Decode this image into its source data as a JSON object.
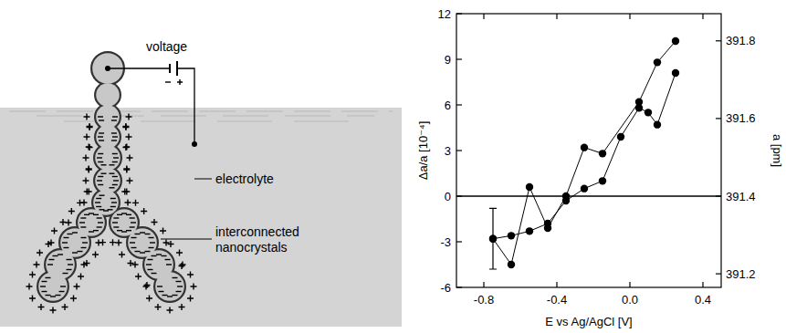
{
  "diagram": {
    "voltage_label": "voltage",
    "electrolyte_label": "electrolyte",
    "nanocrystals_label": "interconnected nanocrystals"
  },
  "chart_data": {
    "type": "line",
    "x_label": "E vs Ag/AgCl [V]",
    "y_label": "Δa/a [10⁻⁴]",
    "y2_label": "a [pm]",
    "xlim": [
      -0.95,
      0.5
    ],
    "xticks": [
      -0.8,
      -0.4,
      {
        "value": 0,
        "label": "0.0"
      },
      0.4
    ],
    "ylim": [
      -6,
      12
    ],
    "yticks": [
      -6,
      -3,
      0,
      3,
      6,
      9,
      12
    ],
    "y2lim": [
      391.165,
      391.87
    ],
    "y2ticks": [
      391.2,
      391.4,
      391.6,
      391.8
    ],
    "grid": false,
    "series": [
      {
        "color": "#000000",
        "marker": "circle",
        "line_style": "solid",
        "x": [
          -0.75,
          -0.65,
          -0.55,
          -0.45,
          -0.35,
          -0.25,
          -0.15,
          -0.05,
          0.05,
          0.1,
          0.15,
          0.25
        ],
        "values": [
          -2.8,
          -2.6,
          -2.3,
          -1.8,
          -0.3,
          0.5,
          1.0,
          3.9,
          5.8,
          5.5,
          4.7,
          8.1
        ],
        "errors": [
          2.0,
          null,
          null,
          null,
          null,
          null,
          null,
          null,
          null,
          null,
          null,
          null
        ]
      },
      {
        "color": "#000000",
        "marker": "circle",
        "line_style": "solid",
        "x": [
          0.25,
          0.15,
          0.05,
          -0.15,
          -0.25,
          -0.35,
          -0.45,
          -0.55,
          -0.65,
          -0.75
        ],
        "values": [
          10.2,
          8.8,
          6.2,
          2.8,
          3.2,
          0.0,
          -2.1,
          0.6,
          -4.5,
          -2.8
        ]
      }
    ]
  }
}
